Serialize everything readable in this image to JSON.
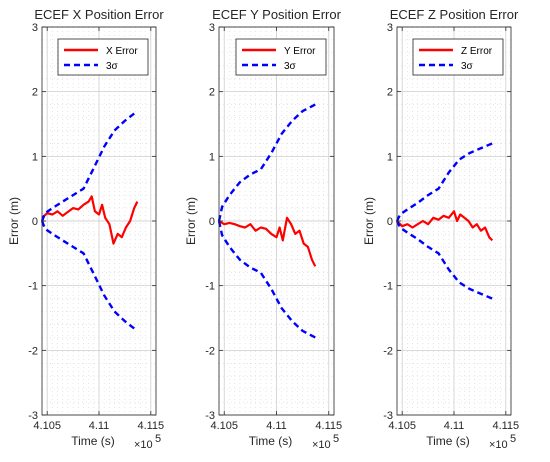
{
  "chart_data": [
    {
      "type": "line",
      "title": "ECEF X Position Error",
      "xlabel": "Time (s)",
      "ylabel": "Error (m)",
      "x_exponent_label": "×10",
      "x_exponent_power": "5",
      "xlim": [
        4.1045,
        4.1155
      ],
      "ylim": [
        -3,
        3
      ],
      "xticks": [
        4.105,
        4.11,
        4.115
      ],
      "xtick_labels": [
        "4.105",
        "4.11",
        "4.115"
      ],
      "yticks": [
        -3,
        -2,
        -1,
        0,
        1,
        2,
        3
      ],
      "ytick_labels": [
        "-3",
        "-2",
        "-1",
        "0",
        "1",
        "2",
        "3"
      ],
      "grid": true,
      "minor_grid": true,
      "legend_position": "top-right",
      "series": [
        {
          "name": "X Error",
          "color": "#ff0000",
          "style": "solid",
          "x": [
            4.1045,
            4.105,
            4.1055,
            4.106,
            4.1065,
            4.107,
            4.1075,
            4.108,
            4.1085,
            4.109,
            4.1093,
            4.1096,
            4.11,
            4.1103,
            4.1106,
            4.111,
            4.1114,
            4.1118,
            4.1122,
            4.1126,
            4.113,
            4.1134,
            4.1137
          ],
          "y": [
            0.05,
            0.12,
            0.1,
            0.15,
            0.08,
            0.14,
            0.2,
            0.18,
            0.25,
            0.3,
            0.38,
            0.15,
            0.1,
            0.25,
            0.05,
            -0.05,
            -0.35,
            -0.2,
            -0.25,
            -0.1,
            0.0,
            0.2,
            0.3
          ]
        },
        {
          "name": "3σ",
          "color": "#0000ff",
          "style": "dashed",
          "x": [
            4.1045,
            4.1048,
            4.1055,
            4.1065,
            4.1075,
            4.1085,
            4.1095,
            4.1105,
            4.1115,
            4.1125,
            4.1137
          ],
          "y": [
            0.0,
            0.12,
            0.2,
            0.3,
            0.4,
            0.5,
            0.82,
            1.15,
            1.4,
            1.55,
            1.7
          ]
        },
        {
          "name": "",
          "color": "#0000ff",
          "style": "dashed",
          "x": [
            4.1045,
            4.1048,
            4.1055,
            4.1065,
            4.1075,
            4.1085,
            4.1095,
            4.1105,
            4.1115,
            4.1125,
            4.1137
          ],
          "y": [
            0.0,
            -0.12,
            -0.2,
            -0.3,
            -0.4,
            -0.5,
            -0.82,
            -1.15,
            -1.4,
            -1.55,
            -1.7
          ]
        }
      ]
    },
    {
      "type": "line",
      "title": "ECEF Y Position Error",
      "xlabel": "Time (s)",
      "ylabel": "Error (m)",
      "x_exponent_label": "×10",
      "x_exponent_power": "5",
      "xlim": [
        4.1045,
        4.1155
      ],
      "ylim": [
        -3,
        3
      ],
      "xticks": [
        4.105,
        4.11,
        4.115
      ],
      "xtick_labels": [
        "4.105",
        "4.11",
        "4.115"
      ],
      "yticks": [
        -3,
        -2,
        -1,
        0,
        1,
        2,
        3
      ],
      "ytick_labels": [
        "-3",
        "-2",
        "-1",
        "0",
        "1",
        "2",
        "3"
      ],
      "grid": true,
      "minor_grid": true,
      "legend_position": "top-right",
      "series": [
        {
          "name": "Y Error",
          "color": "#ff0000",
          "style": "solid",
          "x": [
            4.1045,
            4.105,
            4.1055,
            4.106,
            4.1065,
            4.107,
            4.1075,
            4.108,
            4.1085,
            4.109,
            4.1095,
            4.11,
            4.1103,
            4.1106,
            4.111,
            4.1114,
            4.1118,
            4.1122,
            4.1126,
            4.113,
            4.1134,
            4.1137
          ],
          "y": [
            0.0,
            -0.05,
            -0.03,
            -0.05,
            -0.08,
            -0.1,
            -0.05,
            -0.15,
            -0.1,
            -0.12,
            -0.2,
            -0.25,
            -0.1,
            -0.3,
            0.05,
            -0.05,
            -0.2,
            -0.15,
            -0.35,
            -0.4,
            -0.6,
            -0.7
          ]
        },
        {
          "name": "3σ",
          "color": "#0000ff",
          "style": "dashed",
          "x": [
            4.1045,
            4.1048,
            4.1055,
            4.1065,
            4.1075,
            4.1085,
            4.1095,
            4.1105,
            4.1115,
            4.1125,
            4.1137
          ],
          "y": [
            0.0,
            0.22,
            0.4,
            0.6,
            0.72,
            0.8,
            1.05,
            1.35,
            1.55,
            1.7,
            1.8
          ]
        },
        {
          "name": "",
          "color": "#0000ff",
          "style": "dashed",
          "x": [
            4.1045,
            4.1048,
            4.1055,
            4.1065,
            4.1075,
            4.1085,
            4.1095,
            4.1105,
            4.1115,
            4.1125,
            4.1137
          ],
          "y": [
            0.0,
            -0.22,
            -0.4,
            -0.6,
            -0.72,
            -0.8,
            -1.05,
            -1.35,
            -1.55,
            -1.7,
            -1.8
          ]
        }
      ]
    },
    {
      "type": "line",
      "title": "ECEF Z Position Error",
      "xlabel": "Time (s)",
      "ylabel": "Error (m)",
      "x_exponent_label": "×10",
      "x_exponent_power": "5",
      "xlim": [
        4.1045,
        4.1155
      ],
      "ylim": [
        -3,
        3
      ],
      "xticks": [
        4.105,
        4.11,
        4.115
      ],
      "xtick_labels": [
        "4.105",
        "4.11",
        "4.115"
      ],
      "yticks": [
        -3,
        -2,
        -1,
        0,
        1,
        2,
        3
      ],
      "ytick_labels": [
        "-3",
        "-2",
        "-1",
        "0",
        "1",
        "2",
        "3"
      ],
      "grid": true,
      "minor_grid": true,
      "legend_position": "top-right",
      "series": [
        {
          "name": "Z Error",
          "color": "#ff0000",
          "style": "solid",
          "x": [
            4.1045,
            4.105,
            4.1055,
            4.106,
            4.1065,
            4.107,
            4.1075,
            4.108,
            4.1085,
            4.109,
            4.1095,
            4.11,
            4.1103,
            4.1106,
            4.111,
            4.1114,
            4.1118,
            4.1122,
            4.1126,
            4.113,
            4.1134,
            4.1137
          ],
          "y": [
            0.0,
            -0.08,
            -0.05,
            -0.1,
            -0.05,
            0.0,
            -0.05,
            0.05,
            0.02,
            0.08,
            0.05,
            0.15,
            0.0,
            0.1,
            0.05,
            0.0,
            -0.1,
            -0.05,
            -0.15,
            -0.1,
            -0.25,
            -0.3
          ]
        },
        {
          "name": "3σ",
          "color": "#0000ff",
          "style": "dashed",
          "x": [
            4.1045,
            4.1048,
            4.1055,
            4.1065,
            4.1075,
            4.1085,
            4.1095,
            4.1105,
            4.1115,
            4.1125,
            4.1137
          ],
          "y": [
            0.0,
            0.1,
            0.18,
            0.28,
            0.4,
            0.5,
            0.75,
            0.95,
            1.05,
            1.12,
            1.2
          ]
        },
        {
          "name": "",
          "color": "#0000ff",
          "style": "dashed",
          "x": [
            4.1045,
            4.1048,
            4.1055,
            4.1065,
            4.1075,
            4.1085,
            4.1095,
            4.1105,
            4.1115,
            4.1125,
            4.1137
          ],
          "y": [
            0.0,
            -0.1,
            -0.18,
            -0.28,
            -0.4,
            -0.5,
            -0.75,
            -0.95,
            -1.05,
            -1.12,
            -1.2
          ]
        }
      ]
    }
  ]
}
